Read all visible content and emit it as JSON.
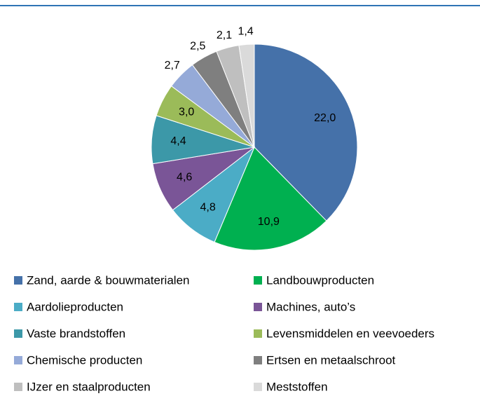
{
  "chart_data": {
    "type": "pie",
    "categories": [
      "Zand, aarde & bouwmaterialen",
      "Landbouwproducten",
      "Aardolieproducten",
      "Machines, auto’s",
      "Vaste brandstoffen",
      "Levensmiddelen en veevoeders",
      "Chemische producten",
      "Ertsen en metaalschroot",
      "IJzer en staalproducten",
      "Meststoffen"
    ],
    "values": [
      22.0,
      10.9,
      4.8,
      4.6,
      4.4,
      3.0,
      2.7,
      2.5,
      2.1,
      1.4
    ],
    "value_labels": [
      "22,0",
      "10,9",
      "4,8",
      "4,6",
      "4,4",
      "3,0",
      "2,7",
      "2,5",
      "2,1",
      "1,4"
    ],
    "colors": [
      "#4571a9",
      "#00b050",
      "#4bacc6",
      "#7a5597",
      "#3c98a8",
      "#9bbb59",
      "#95aad8",
      "#7f7f7f",
      "#bfbfbf",
      "#dadada"
    ],
    "legend": "bottom"
  }
}
